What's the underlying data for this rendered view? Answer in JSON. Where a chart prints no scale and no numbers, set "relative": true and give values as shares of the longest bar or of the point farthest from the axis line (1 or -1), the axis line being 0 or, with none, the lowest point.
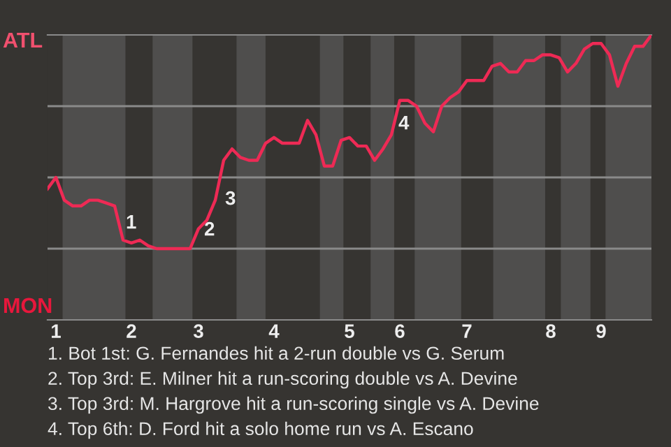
{
  "chart_data": {
    "type": "line",
    "relative": true,
    "categories": [
      null,
      "1",
      null,
      null,
      null,
      null,
      null,
      null,
      null,
      null,
      "2",
      null,
      null,
      null,
      null,
      null,
      null,
      null,
      "3",
      null,
      null,
      null,
      null,
      null,
      null,
      null,
      null,
      "4",
      null,
      null,
      null,
      null,
      null,
      null,
      null,
      null,
      "5",
      null,
      null,
      null,
      null,
      null,
      "6",
      null,
      null,
      null,
      null,
      null,
      null,
      null,
      "7",
      null,
      null,
      null,
      null,
      null,
      null,
      null,
      null,
      null,
      "8",
      null,
      null,
      null,
      null,
      null,
      "9",
      null,
      null,
      null,
      null,
      null,
      null
    ],
    "series": [
      {
        "color": "#ee2a55",
        "values": [
          0.46,
          0.5,
          0.42,
          0.4,
          0.4,
          0.42,
          0.42,
          0.41,
          0.4,
          0.28,
          0.27,
          0.28,
          0.26,
          0.25,
          0.25,
          0.25,
          0.25,
          0.25,
          0.32,
          0.35,
          0.42,
          0.56,
          0.6,
          0.57,
          0.56,
          0.56,
          0.62,
          0.64,
          0.62,
          0.62,
          0.62,
          0.7,
          0.65,
          0.54,
          0.54,
          0.63,
          0.64,
          0.61,
          0.61,
          0.56,
          0.6,
          0.65,
          0.77,
          0.77,
          0.75,
          0.69,
          0.66,
          0.75,
          0.78,
          0.8,
          0.84,
          0.84,
          0.84,
          0.89,
          0.9,
          0.87,
          0.87,
          0.91,
          0.91,
          0.93,
          0.93,
          0.92,
          0.87,
          0.9,
          0.95,
          0.97,
          0.97,
          0.93,
          0.82,
          0.9,
          0.96,
          0.96,
          1
        ]
      }
    ],
    "grid": false,
    "ref_lines": [
      {
        "axis": "y",
        "value": 0.25,
        "color": "#8a8a8a"
      },
      {
        "axis": "y",
        "value": 0.5,
        "color": "#8a8a8a"
      },
      {
        "axis": "y",
        "value": 0.75,
        "color": "#8a8a8a"
      }
    ],
    "annotations": [
      "ATL",
      "MON",
      "1",
      "2",
      "3",
      "4",
      "1. Bot 1st: G. Fernandes hit a 2-run double vs G. Serum",
      "2. Top 3rd: E. Milner hit a run-scoring double vs A. Devine",
      "3. Top 3rd: M. Hargrove hit a run-scoring single vs A. Devine",
      "4. Top 6th: D. Ford hit a solo home run vs A. Escano"
    ]
  }
}
